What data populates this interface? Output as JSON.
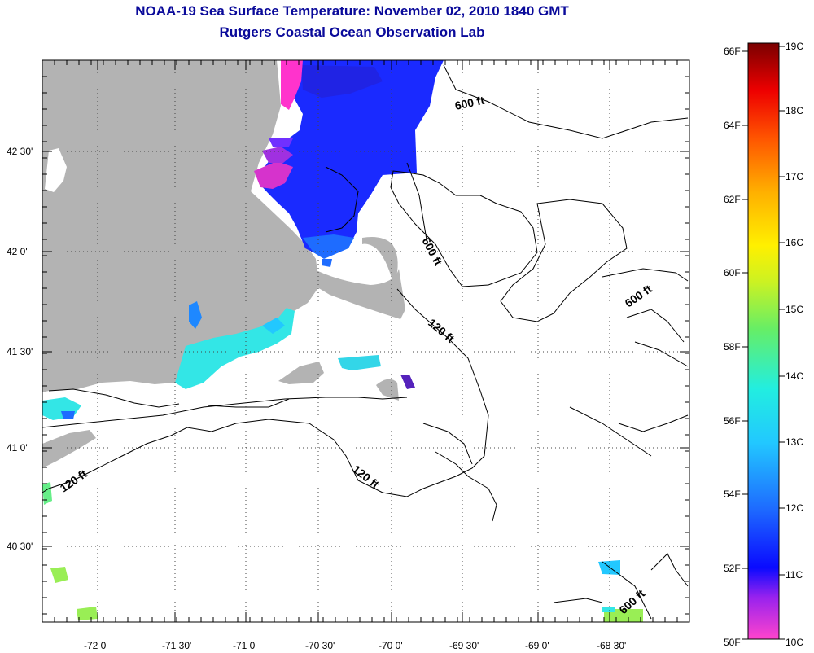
{
  "title": "NOAA-19 Sea Surface Temperature:  November 02, 2010 1840 GMT",
  "subtitle": "Rutgers Coastal Ocean Observation Lab",
  "latitude_labels": [
    "42 30'",
    "42 0'",
    "41 30'",
    "41 0'",
    "40 30'"
  ],
  "longitude_labels": [
    "-72 0'",
    "-71 30'",
    "-71 0'",
    "-70 30'",
    "-70 0'",
    "-69 30'",
    "-69 0'",
    "-68 30'"
  ],
  "contour_labels": [
    "600 ft",
    "600 ft",
    "600 ft",
    "120 ft",
    "120 ft",
    "120 ft",
    "600 ft"
  ],
  "colorbar": {
    "fahrenheit": [
      "66F",
      "64F",
      "62F",
      "60F",
      "58F",
      "56F",
      "54F",
      "52F",
      "50F"
    ],
    "celsius": [
      "19C",
      "18C",
      "17C",
      "16C",
      "15C",
      "14C",
      "13C",
      "12C",
      "11C",
      "10C"
    ]
  },
  "colors": {
    "title": "#0a0a9a",
    "land": "#b3b3b3",
    "cold_magenta": "#ff33cc",
    "blue": "#1a2aff",
    "cyan": "#33e6e6",
    "green": "#88ee55"
  }
}
